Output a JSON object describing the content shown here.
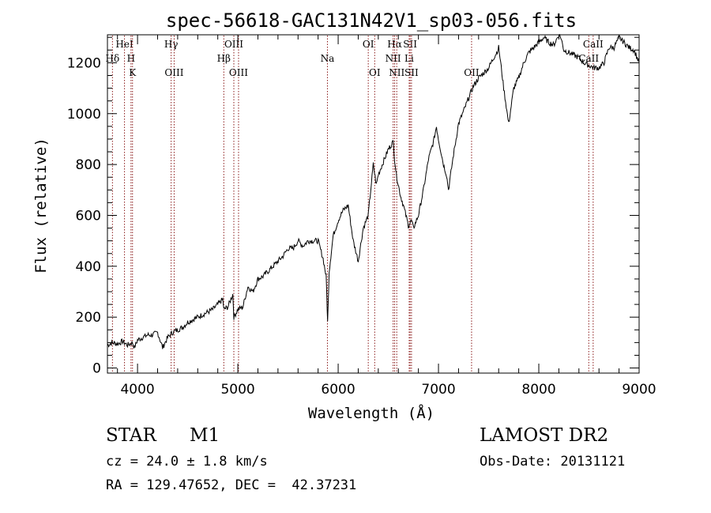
{
  "chart_data": {
    "type": "line",
    "title": "spec-56618-GAC131N42V1_sp03-056.fits",
    "xlabel": "Wavelength (Å)",
    "ylabel": "Flux (relative)",
    "xlim": [
      3700,
      9000
    ],
    "ylim": [
      -20,
      1310
    ],
    "x_ticks": [
      4000,
      5000,
      6000,
      7000,
      8000,
      9000
    ],
    "y_ticks": [
      0,
      200,
      400,
      600,
      800,
      1000,
      1200
    ],
    "x_tick_labels": [
      "4000",
      "5000",
      "6000",
      "7000",
      "8000",
      "9000"
    ],
    "y_tick_labels": [
      "0",
      "200",
      "400",
      "600",
      "800",
      "1000",
      "1200"
    ],
    "grid": false,
    "line_color": "#000000",
    "marker_color": "#8b1a1a",
    "spectrum": {
      "x": [
        3700,
        3750,
        3800,
        3850,
        3900,
        3950,
        3970,
        4000,
        4050,
        4100,
        4150,
        4200,
        4250,
        4300,
        4350,
        4400,
        4450,
        4500,
        4550,
        4600,
        4650,
        4700,
        4750,
        4800,
        4850,
        4860,
        4900,
        4950,
        4960,
        5000,
        5050,
        5100,
        5150,
        5200,
        5250,
        5300,
        5350,
        5400,
        5450,
        5500,
        5550,
        5600,
        5650,
        5700,
        5750,
        5800,
        5850,
        5880,
        5895,
        5910,
        5950,
        6000,
        6050,
        6100,
        6150,
        6200,
        6250,
        6300,
        6350,
        6380,
        6400,
        6450,
        6500,
        6550,
        6563,
        6580,
        6620,
        6650,
        6700,
        6730,
        6750,
        6800,
        6850,
        6900,
        6950,
        6980,
        7000,
        7050,
        7080,
        7100,
        7150,
        7200,
        7250,
        7300,
        7350,
        7400,
        7450,
        7500,
        7550,
        7580,
        7600,
        7620,
        7650,
        7700,
        7750,
        7800,
        7850,
        7900,
        7950,
        8000,
        8050,
        8100,
        8150,
        8200,
        8220,
        8250,
        8300,
        8350,
        8400,
        8450,
        8500,
        8550,
        8600,
        8650,
        8700,
        8750,
        8800,
        8850,
        8900,
        8950,
        9000
      ],
      "y": [
        90,
        100,
        95,
        105,
        90,
        100,
        80,
        110,
        120,
        130,
        130,
        140,
        80,
        120,
        140,
        150,
        160,
        180,
        190,
        200,
        210,
        220,
        230,
        250,
        270,
        230,
        240,
        290,
        200,
        230,
        240,
        320,
        300,
        350,
        360,
        380,
        400,
        420,
        440,
        470,
        470,
        500,
        480,
        500,
        500,
        500,
        430,
        360,
        180,
        380,
        520,
        580,
        620,
        640,
        500,
        420,
        550,
        600,
        800,
        720,
        760,
        810,
        860,
        890,
        820,
        760,
        680,
        640,
        560,
        580,
        550,
        600,
        700,
        820,
        890,
        950,
        900,
        800,
        760,
        700,
        840,
        960,
        1010,
        1060,
        1110,
        1140,
        1160,
        1180,
        1220,
        1240,
        1260,
        1200,
        1100,
        960,
        1100,
        1140,
        1200,
        1240,
        1260,
        1280,
        1300,
        1280,
        1270,
        1310,
        1300,
        1250,
        1240,
        1230,
        1220,
        1200,
        1190,
        1180,
        1180,
        1200,
        1260,
        1260,
        1300,
        1280,
        1260,
        1250,
        1200
      ]
    },
    "lines": [
      {
        "label": "Hδ",
        "x": 3750,
        "row": 2
      },
      {
        "label": "HeI",
        "x": 3870,
        "row": 1
      },
      {
        "label": "H",
        "x": 3935,
        "row": 2
      },
      {
        "label": "K",
        "x": 3950,
        "row": 3
      },
      {
        "label": "Hγ",
        "x": 4335,
        "row": 1
      },
      {
        "label": "OIII",
        "x": 4365,
        "row": 3
      },
      {
        "label": "Hβ",
        "x": 4860,
        "row": 2
      },
      {
        "label": "OIII",
        "x": 4960,
        "row": 1
      },
      {
        "label": "OIII",
        "x": 5007,
        "row": 3
      },
      {
        "label": "Na",
        "x": 5893,
        "row": 2
      },
      {
        "label": "OI",
        "x": 6300,
        "row": 1
      },
      {
        "label": "OI",
        "x": 6364,
        "row": 3
      },
      {
        "label": "Hα",
        "x": 6563,
        "row": 1
      },
      {
        "label": "NII",
        "x": 6548,
        "row": 2
      },
      {
        "label": "NII",
        "x": 6584,
        "row": 3
      },
      {
        "label": "SII",
        "x": 6717,
        "row": 1
      },
      {
        "label": "Li",
        "x": 6708,
        "row": 2
      },
      {
        "label": "SII",
        "x": 6731,
        "row": 3
      },
      {
        "label": "OII",
        "x": 7330,
        "row": 3
      },
      {
        "label": "CaII",
        "x": 8542,
        "row": 1
      },
      {
        "label": "CaII",
        "x": 8498,
        "row": 2
      }
    ]
  },
  "info": {
    "object_class": "STAR",
    "subclass": "M1",
    "survey": "LAMOST DR2",
    "cz": "cz = 24.0 ± 1.8 km/s",
    "obs_date": "Obs-Date: 20131121",
    "coords": "RA = 129.47652, DEC =  42.37231"
  }
}
